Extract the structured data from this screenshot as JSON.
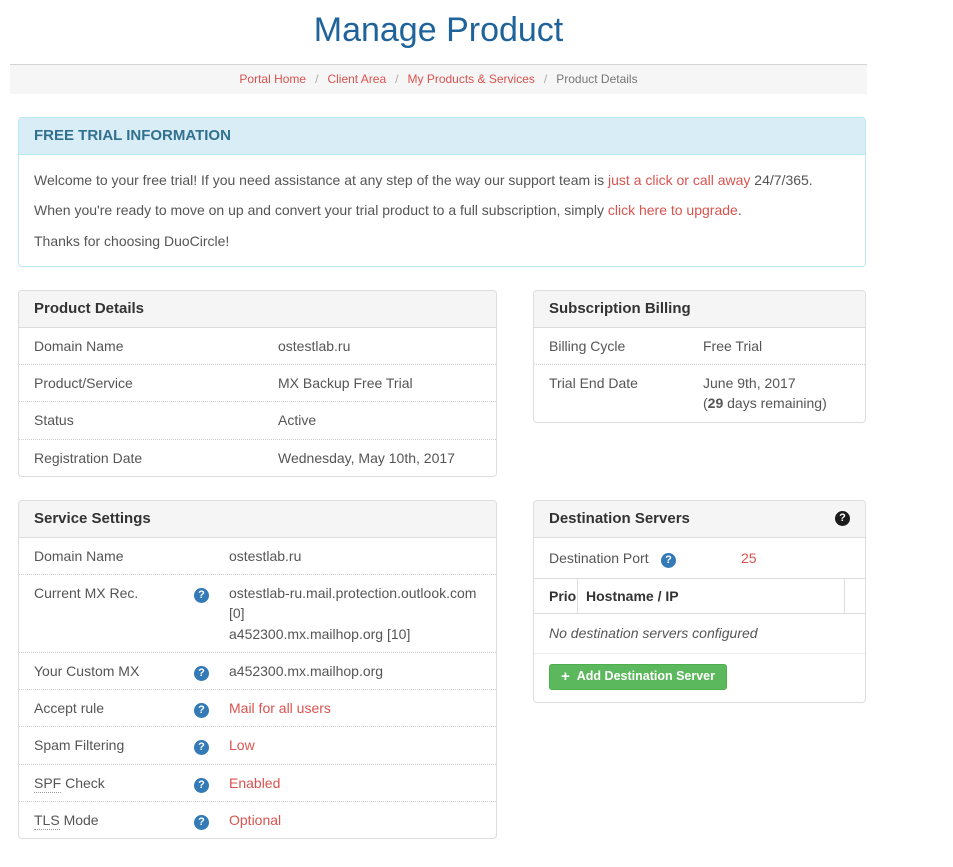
{
  "colors": {
    "title_blue": "#20639b",
    "link_red": "#d9534f",
    "info_header_bg": "#d9edf7",
    "info_header_text": "#31708f",
    "help_icon_blue": "#337ab7",
    "help_icon_black": "#1c1c1c",
    "button_green": "#5cb85c",
    "panel_header_bg": "#f5f5f5"
  },
  "page": {
    "title": "Manage Product"
  },
  "breadcrumb": {
    "separator": "/",
    "items": [
      {
        "label": "Portal Home"
      },
      {
        "label": "Client Area"
      },
      {
        "label": "My Products & Services"
      },
      {
        "label": "Product Details"
      }
    ]
  },
  "free_trial": {
    "header": "FREE TRIAL INFORMATION",
    "p1": {
      "pre": "Welcome to your free trial! If you need assistance at any step of the way our support team is ",
      "link": "just a click or call away",
      "post": " 24/7/365."
    },
    "p2": {
      "pre": "When you're ready to move on up and convert your trial product to a full subscription, simply ",
      "link": "click here to upgrade",
      "post": "."
    },
    "p3": "Thanks for choosing DuoCircle!"
  },
  "product_details": {
    "header": "Product Details",
    "rows": [
      {
        "label": "Domain Name",
        "value": "ostestlab.ru"
      },
      {
        "label": "Product/Service",
        "value": "MX Backup Free Trial"
      },
      {
        "label": "Status",
        "value": "Active"
      },
      {
        "label": "Registration Date",
        "value": "Wednesday, May 10th, 2017"
      }
    ]
  },
  "subscription_billing": {
    "header": "Subscription Billing",
    "billing_cycle_label": "Billing Cycle",
    "billing_cycle_value": "Free Trial",
    "trial_end_label": "Trial End Date",
    "trial_end_date": "June 9th, 2017",
    "remaining_pre": "(",
    "remaining_days": "29",
    "remaining_post": " days remaining)"
  },
  "service_settings": {
    "header": "Service Settings",
    "rows": [
      {
        "label": "Domain Name",
        "value": "ostestlab.ru"
      },
      {
        "label": "Current MX Rec.",
        "value_lines": [
          "ostestlab-ru.mail.protection.outlook.com [0]",
          "a452300.mx.mailhop.org [10]"
        ]
      },
      {
        "label": "Your Custom MX",
        "value": "a452300.mx.mailhop.org"
      },
      {
        "label": "Accept rule",
        "value": "Mail for all users"
      },
      {
        "label": "Spam Filtering",
        "value": "Low"
      },
      {
        "label_abbr": "SPF",
        "label_rest": " Check",
        "value": "Enabled"
      },
      {
        "label_abbr": "TLS",
        "label_rest": " Mode",
        "value": "Optional"
      }
    ],
    "help_icon_glyph": "?"
  },
  "destination_servers": {
    "header": "Destination Servers",
    "port_label": "Destination Port",
    "port_value": "25",
    "table_headers": [
      "Prio",
      "Hostname / IP"
    ],
    "empty_message": "No destination servers configured",
    "add_button_label": "Add Destination Server",
    "add_button_icon": "+"
  }
}
